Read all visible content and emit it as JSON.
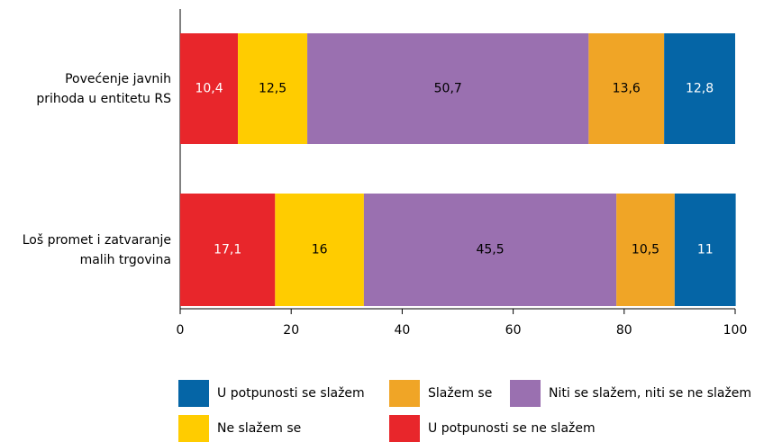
{
  "chart_data": {
    "type": "stacked_barh",
    "categories": [
      "Povećenje javnih\nprihoda u entitetu RS",
      "Loš promet i zatvaranje\nmalih trgovina"
    ],
    "series": [
      {
        "name": "U potpunosti se ne slažem",
        "color": "#e8262b",
        "label_color": "#ffffff",
        "values": [
          10.4,
          17.1
        ],
        "value_labels": [
          "10,4",
          "17,1"
        ]
      },
      {
        "name": "Ne slažem se",
        "color": "#ffcc00",
        "label_color": "#000000",
        "values": [
          12.5,
          16
        ],
        "value_labels": [
          "12,5",
          "16"
        ]
      },
      {
        "name": "Niti se slažem, niti se ne slažem",
        "color": "#9a70b0",
        "label_color": "#000000",
        "values": [
          50.7,
          45.5
        ],
        "value_labels": [
          "50,7",
          "45,5"
        ]
      },
      {
        "name": "Slažem se",
        "color": "#f0a526",
        "label_color": "#000000",
        "values": [
          13.6,
          10.5
        ],
        "value_labels": [
          "13,6",
          "10,5"
        ]
      },
      {
        "name": "U potpunosti se slažem",
        "color": "#0565a6",
        "label_color": "#ffffff",
        "values": [
          12.8,
          11
        ],
        "value_labels": [
          "12,8",
          "11"
        ]
      }
    ],
    "xlim": [
      0,
      100
    ],
    "xticks": [
      0,
      20,
      40,
      60,
      80,
      100
    ]
  }
}
